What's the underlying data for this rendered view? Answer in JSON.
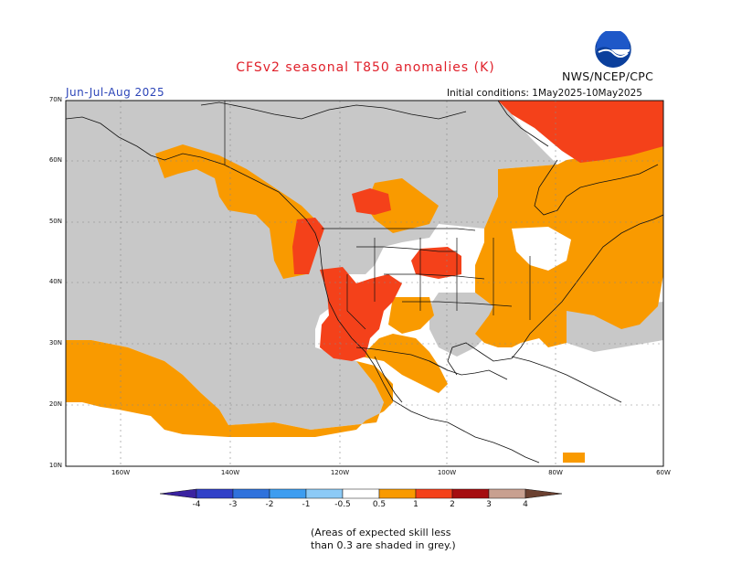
{
  "header": {
    "title": "CFSv2 seasonal T850 anomalies (K)",
    "season": "Jun-Jul-Aug 2025",
    "initial_conditions": "Initial conditions: 1May2025-10May2025",
    "agency": "NWS/NCEP/CPC",
    "logo_text": "NOAA"
  },
  "map": {
    "lat_labels": [
      "70N",
      "60N",
      "50N",
      "40N",
      "30N",
      "20N",
      "10N"
    ],
    "lon_labels": [
      "160W",
      "140W",
      "120W",
      "100W",
      "80W",
      "60W"
    ],
    "domain": {
      "lon_range": [
        "170W",
        "60W"
      ],
      "lat_range": [
        "10N",
        "70N"
      ]
    }
  },
  "legend": {
    "labels": [
      "-4",
      "-3",
      "-2",
      "-1",
      "-0.5",
      "0.5",
      "1",
      "2",
      "3",
      "4"
    ],
    "colors": {
      "lt_-4": "#3a22a0",
      "-4_-3": "#3040c8",
      "-3_-2": "#2f72dc",
      "-2_-1": "#3d9df0",
      "-1_-0.5": "#8ccaf6",
      "-0.5_0.5": "#ffffff",
      "0.5_1": "#f99a00",
      "1_2": "#f4411a",
      "2_3": "#a50d10",
      "3_4": "#c8a090",
      "gt_4": "#6b4030"
    },
    "low_skill_color": "#c8c8c8"
  },
  "note": {
    "line1": "(Areas of expected skill less",
    "line2": "than 0.3 are shaded in grey.)"
  }
}
